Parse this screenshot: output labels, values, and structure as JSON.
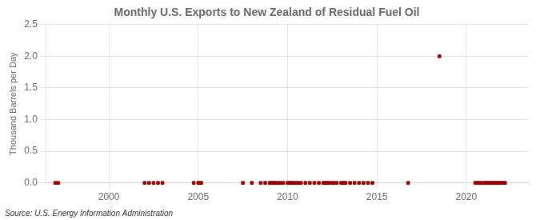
{
  "chart_data": {
    "type": "scatter",
    "title": "Monthly U.S. Exports to New Zealand of Residual Fuel Oil",
    "ylabel": "Thousand Barrels per Day",
    "annotation": "Source: U.S. Energy Information Administration",
    "x": [
      1997.0,
      1997.17,
      2002.0,
      2002.25,
      2002.5,
      2002.75,
      2003.0,
      2004.75,
      2005.0,
      2005.08,
      2005.17,
      2007.5,
      2008.0,
      2008.5,
      2008.75,
      2009.0,
      2009.08,
      2009.17,
      2009.25,
      2009.33,
      2009.5,
      2009.58,
      2009.75,
      2010.0,
      2010.08,
      2010.17,
      2010.25,
      2010.33,
      2010.5,
      2010.58,
      2010.75,
      2011.0,
      2011.25,
      2011.5,
      2011.75,
      2012.0,
      2012.08,
      2012.17,
      2012.25,
      2012.33,
      2012.5,
      2012.58,
      2012.75,
      2013.0,
      2013.08,
      2013.17,
      2013.25,
      2013.5,
      2013.75,
      2014.0,
      2014.25,
      2014.5,
      2014.75,
      2016.75,
      2018.5,
      2020.5,
      2020.58,
      2020.67,
      2020.75,
      2020.83,
      2021.0,
      2021.08,
      2021.17,
      2021.25,
      2021.33,
      2021.42,
      2021.5,
      2021.58,
      2021.67,
      2021.75,
      2021.83,
      2021.92,
      2022.0,
      2022.08,
      2022.17
    ],
    "values": [
      0.0,
      0.0,
      0.0,
      0.0,
      0.0,
      0.0,
      0.0,
      0.0,
      0.0,
      0.0,
      0.0,
      0.0,
      0.0,
      0.0,
      0.0,
      0.0,
      0.0,
      0.0,
      0.0,
      0.0,
      0.0,
      0.0,
      0.0,
      0.0,
      0.0,
      0.0,
      0.0,
      0.0,
      0.0,
      0.0,
      0.0,
      0.0,
      0.0,
      0.0,
      0.0,
      0.0,
      0.0,
      0.0,
      0.0,
      0.0,
      0.0,
      0.0,
      0.0,
      0.0,
      0.0,
      0.0,
      0.0,
      0.0,
      0.0,
      0.0,
      0.0,
      0.0,
      0.0,
      0.0,
      2.0,
      0.0,
      0.0,
      0.0,
      0.0,
      0.0,
      0.0,
      0.0,
      0.0,
      0.0,
      0.0,
      0.0,
      0.0,
      0.0,
      0.0,
      0.0,
      0.0,
      0.0,
      0.0,
      0.0,
      0.0
    ],
    "color": "#990000",
    "marker": "square",
    "xlim": [
      1996.5,
      2023.5
    ],
    "ylim": [
      0,
      2.5
    ],
    "xticks": [
      2000,
      2005,
      2010,
      2015,
      2020
    ],
    "yticks": [
      {
        "value": 0.0,
        "label": "0.0"
      },
      0.5,
      {
        "value": 1.0,
        "label": "1.0"
      },
      1.5,
      {
        "value": 2.0,
        "label": "2.0"
      },
      2.5
    ],
    "grid": true
  }
}
